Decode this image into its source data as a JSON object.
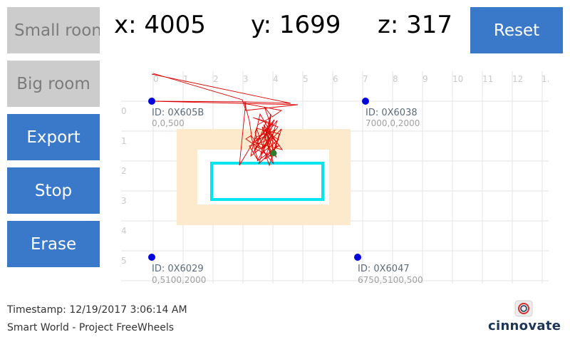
{
  "sidebar": {
    "small_room": "Small roon",
    "big_room": "Big room",
    "export": "Export",
    "stop": "Stop",
    "erase": "Erase"
  },
  "coords": {
    "x": "x: 4005",
    "y": "y: 1699",
    "z": "z: 317"
  },
  "reset_label": "Reset",
  "grid": {
    "x_ticks": [
      "0",
      "1",
      "2",
      "3",
      "4",
      "5",
      "6",
      "7",
      "8",
      "9",
      "10",
      "11",
      "12",
      "1."
    ],
    "y_ticks": [
      "0",
      "1",
      "2",
      "3",
      "4",
      "5"
    ]
  },
  "anchors": [
    {
      "id": "ID: 0X605B",
      "coords": "0,0,500"
    },
    {
      "id": "ID: 0X6038",
      "coords": "7000,0,2000"
    },
    {
      "id": "ID: 0X6029",
      "coords": "0,5100,2000"
    },
    {
      "id": "ID: 0X6047",
      "coords": "6750,5100,500"
    }
  ],
  "footer": {
    "timestamp": "Timestamp: 12/19/2017 3:06:14 AM",
    "project": "Smart World - Project FreeWheels"
  },
  "logo_text": "cinnovate",
  "colors": {
    "button_blue": "#3a78c9",
    "button_gray": "#cccccc",
    "anchor": "#0000dd",
    "track": "#dd0000",
    "current_position": "#2e7d32",
    "outer_zone": "#fde9cc",
    "inner_zone": "#00e5ee"
  }
}
